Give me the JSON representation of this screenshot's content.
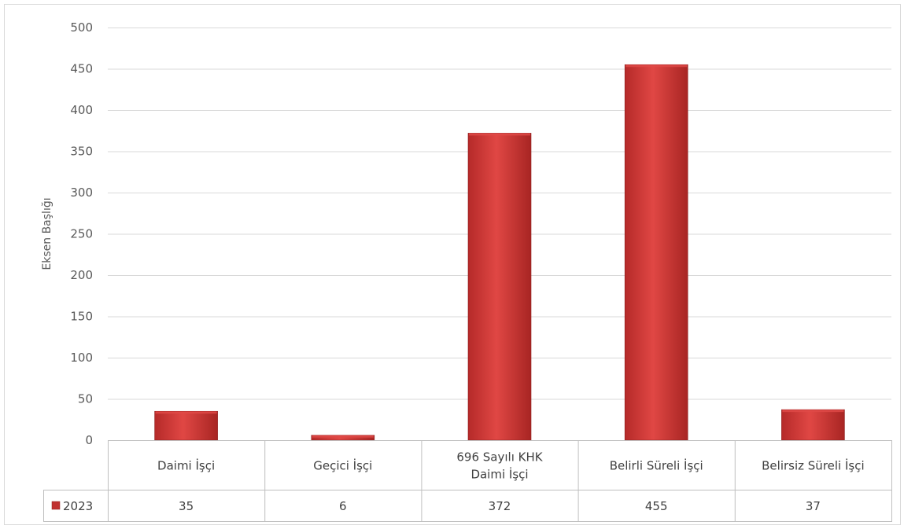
{
  "chart_data": {
    "type": "bar",
    "categories": [
      "Daimi İşçi",
      "Geçici İşçi",
      "696 Sayılı KHK Daimi İşçi",
      "Belirli Süreli İşçi",
      "Belirsiz Süreli İşçi"
    ],
    "category_lines": [
      [
        "Daimi İşçi"
      ],
      [
        "Geçici İşçi"
      ],
      [
        "696 Sayılı KHK",
        "Daimi İşçi"
      ],
      [
        "Belirli Süreli İşçi"
      ],
      [
        "Belirsiz Süreli İşçi"
      ]
    ],
    "series": [
      {
        "name": "2023",
        "values": [
          35,
          6,
          372,
          455,
          37
        ],
        "color": "#c0302f"
      }
    ],
    "ylabel": "Eksen Başlığı",
    "ylim": [
      0,
      500
    ],
    "yticks": [
      0,
      50,
      100,
      150,
      200,
      250,
      300,
      350,
      400,
      450,
      500
    ],
    "grid": true,
    "legend": "data-table",
    "colors": {
      "bar": "#c0302f",
      "bar_light": "#e04a47",
      "grid": "#d9d9d9",
      "axis": "#bfbfbf"
    }
  }
}
